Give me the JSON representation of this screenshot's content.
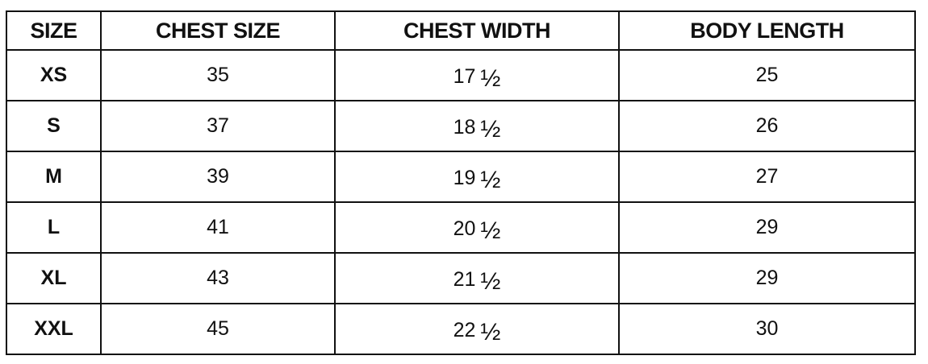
{
  "headers": [
    "SIZE",
    "CHEST SIZE",
    "CHEST WIDTH",
    "BODY LENGTH"
  ],
  "rows": [
    {
      "size": "XS",
      "chest_size": "35",
      "chest_width": {
        "whole": "17",
        "frac": "½"
      },
      "body_length": "25"
    },
    {
      "size": "S",
      "chest_size": "37",
      "chest_width": {
        "whole": "18",
        "frac": "½"
      },
      "body_length": "26"
    },
    {
      "size": "M",
      "chest_size": "39",
      "chest_width": {
        "whole": "19",
        "frac": "½"
      },
      "body_length": "27"
    },
    {
      "size": "L",
      "chest_size": "41",
      "chest_width": {
        "whole": "20",
        "frac": "½"
      },
      "body_length": "29"
    },
    {
      "size": "XL",
      "chest_size": "43",
      "chest_width": {
        "whole": "21",
        "frac": "½"
      },
      "body_length": "29"
    },
    {
      "size": "XXL",
      "chest_size": "45",
      "chest_width": {
        "whole": "22",
        "frac": "½"
      },
      "body_length": "30"
    }
  ]
}
